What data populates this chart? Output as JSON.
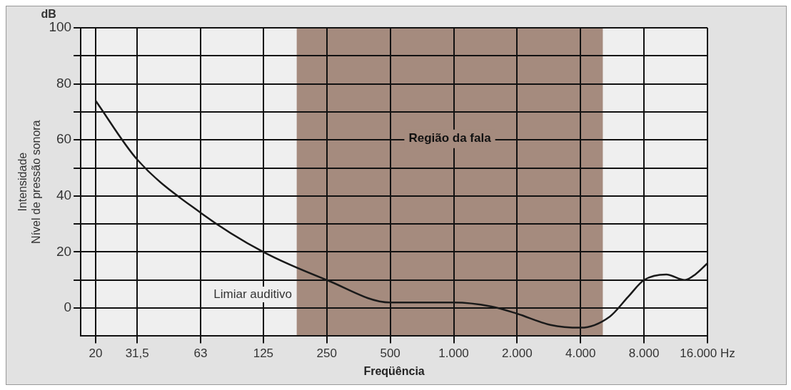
{
  "chart_data": {
    "type": "line",
    "xlabel": "Freqüência",
    "ylabel": "Intensidade\nNível de pressão sonora",
    "annotations": [
      "dB"
    ],
    "x": [
      20,
      31.5,
      63,
      125,
      250,
      500,
      1000,
      1500,
      2000,
      2880,
      4000,
      5510,
      6720,
      8000,
      10200,
      12500,
      14000,
      16000
    ],
    "series": [
      {
        "name": "Limiar auditivo",
        "color": "#1a1a1a",
        "values": [
          74,
          53,
          34,
          20,
          10,
          2,
          2,
          0.6,
          -2,
          -6,
          -7,
          -3,
          4,
          10,
          12,
          10,
          12,
          16
        ]
      }
    ],
    "log": "x",
    "xlim": [
      17,
      16000
    ],
    "xticks": [
      20,
      {
        "value": 31.5,
        "label": "31,5"
      },
      63,
      125,
      250,
      500,
      {
        "value": 1000,
        "label": "1.000"
      },
      {
        "value": 2000,
        "label": "2.000"
      },
      {
        "value": 4000,
        "label": "4.000"
      },
      {
        "value": 8000,
        "label": "8.000"
      },
      {
        "value": 16000,
        "label": "16.000 Hz"
      }
    ],
    "ylim": [
      -10,
      100
    ],
    "yticks": [
      0,
      {
        "value": 10,
        "label": null
      },
      20,
      {
        "value": 30,
        "label": null
      },
      40,
      {
        "value": 50,
        "label": null
      },
      60,
      {
        "value": 70,
        "label": null
      },
      80,
      {
        "value": 90,
        "label": null
      },
      100
    ],
    "bands": [
      {
        "axis": "x",
        "from": 180,
        "to": 5100,
        "label": "Região da fala",
        "color": "#a58b7e"
      }
    ],
    "grid": true,
    "legend": false,
    "marker": "none",
    "line_style": "solid"
  }
}
